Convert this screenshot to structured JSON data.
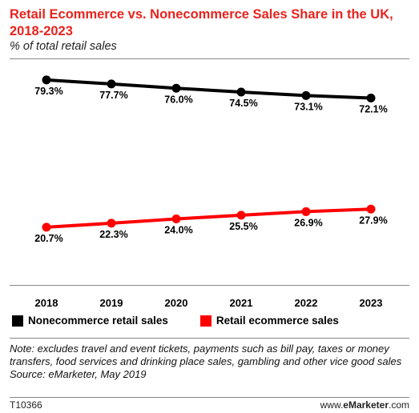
{
  "header": {
    "title": "Retail Ecommerce vs. Nonecommerce Sales Share in the UK, 2018-2023",
    "subtitle": "% of total retail sales"
  },
  "chart_data": {
    "type": "line",
    "x": [
      "2018",
      "2019",
      "2020",
      "2021",
      "2022",
      "2023"
    ],
    "series": [
      {
        "name": "Nonecommerce retail sales",
        "values": [
          79.3,
          77.7,
          76.0,
          74.5,
          73.1,
          72.1
        ],
        "labels": [
          "79.3%",
          "77.7%",
          "76.0%",
          "74.5%",
          "73.1%",
          "72.1%"
        ],
        "color": "#000000"
      },
      {
        "name": "Retail ecommerce sales",
        "values": [
          20.7,
          22.3,
          24.0,
          25.5,
          26.9,
          27.9
        ],
        "labels": [
          "20.7%",
          "22.3%",
          "24.0%",
          "25.5%",
          "26.9%",
          "27.9%"
        ],
        "color": "#ff0000"
      }
    ],
    "ylim": [
      0,
      100
    ],
    "grid": false,
    "legend_position": "bottom"
  },
  "footer": {
    "note": "Note: excludes travel and event tickets, payments such as bill pay, taxes or money transfers, food services and drinking place sales, gambling and other vice good sales",
    "source": "Source: eMarketer, May 2019",
    "chart_id": "T10366",
    "brand_prefix": "www.",
    "brand_bold": "eMarketer",
    "brand_suffix": ".com"
  }
}
